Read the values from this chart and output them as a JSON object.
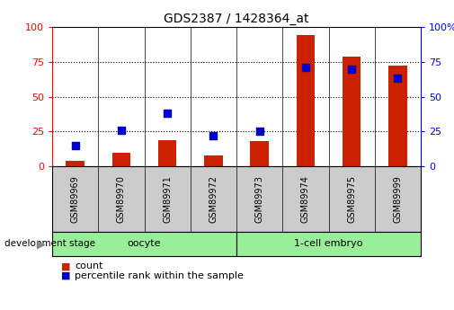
{
  "title": "GDS2387 / 1428364_at",
  "samples": [
    "GSM89969",
    "GSM89970",
    "GSM89971",
    "GSM89972",
    "GSM89973",
    "GSM89974",
    "GSM89975",
    "GSM89999"
  ],
  "count_values": [
    4,
    10,
    19,
    8,
    18,
    94,
    79,
    72
  ],
  "percentile_values": [
    15,
    26,
    38,
    22,
    25,
    71,
    70,
    63
  ],
  "ylim_left": [
    0,
    100
  ],
  "ylim_right": [
    0,
    100
  ],
  "yticks": [
    0,
    25,
    50,
    75,
    100
  ],
  "bar_color": "#cc2200",
  "dot_color": "#0000cc",
  "bar_width": 0.4,
  "dot_size": 30,
  "legend_count_label": "count",
  "legend_percentile_label": "percentile rank within the sample",
  "xlabel_stage": "development stage",
  "gray": "#cccccc",
  "green": "#99ee99",
  "title_fontsize": 10,
  "tick_fontsize": 8,
  "sample_fontsize": 7,
  "group_fontsize": 8,
  "legend_fontsize": 8
}
